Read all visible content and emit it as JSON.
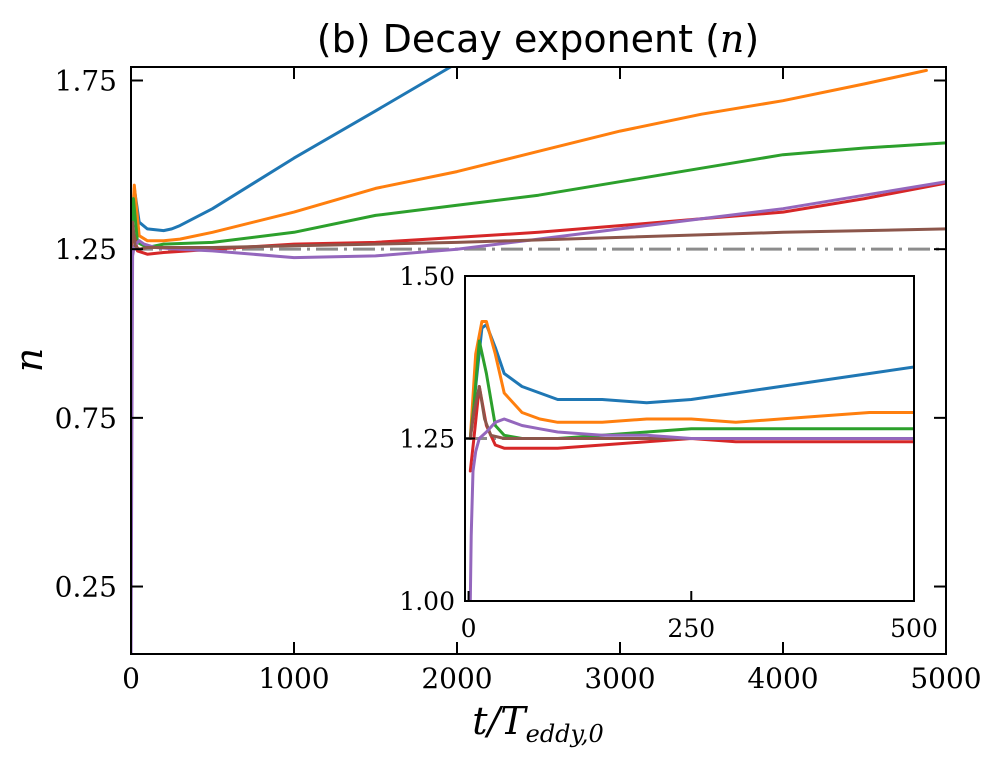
{
  "chart_data": {
    "type": "line",
    "title": "(b) Decay exponent (n)",
    "title_text": "(b) Decay exponent (",
    "title_symbol": "n",
    "title_close": ")",
    "xlabel": "t/T",
    "xlabel_sub": "eddy,0",
    "ylabel": "n",
    "xlim": [
      0,
      5000
    ],
    "ylim": [
      0.05,
      1.79
    ],
    "xticks": [
      0,
      1000,
      2000,
      3000,
      4000,
      5000
    ],
    "xtick_labels": [
      "0",
      "1000",
      "2000",
      "3000",
      "4000",
      "5000"
    ],
    "yticks": [
      0.25,
      0.75,
      1.25,
      1.75
    ],
    "ytick_labels": [
      "0.25",
      "0.75",
      "1.25",
      "1.75"
    ],
    "grid": false,
    "reference_line": {
      "y": 1.25,
      "style": "dash-dot",
      "color": "#8c8c8c"
    },
    "series": [
      {
        "name": "blue",
        "color": "#1f77b4",
        "x": [
          0,
          20,
          50,
          100,
          200,
          250,
          300,
          500,
          1000,
          1500,
          1960
        ],
        "y": [
          1.25,
          1.43,
          1.33,
          1.31,
          1.305,
          1.31,
          1.32,
          1.37,
          1.52,
          1.66,
          1.79
        ]
      },
      {
        "name": "orange",
        "color": "#ff7f0e",
        "x": [
          0,
          20,
          50,
          100,
          200,
          300,
          500,
          1000,
          1500,
          2000,
          2500,
          3000,
          3500,
          4000,
          4500,
          4880
        ],
        "y": [
          1.25,
          1.44,
          1.29,
          1.275,
          1.275,
          1.28,
          1.3,
          1.36,
          1.43,
          1.48,
          1.54,
          1.6,
          1.65,
          1.69,
          1.74,
          1.78
        ]
      },
      {
        "name": "green",
        "color": "#2ca02c",
        "x": [
          0,
          15,
          40,
          100,
          200,
          500,
          1000,
          1500,
          2000,
          2500,
          3000,
          3500,
          4000,
          4500,
          5000
        ],
        "y": [
          1.25,
          1.4,
          1.27,
          1.255,
          1.265,
          1.27,
          1.3,
          1.35,
          1.38,
          1.41,
          1.45,
          1.49,
          1.53,
          1.55,
          1.565
        ]
      },
      {
        "name": "red",
        "color": "#d62728",
        "x": [
          0,
          15,
          40,
          100,
          200,
          500,
          1000,
          1500,
          2000,
          2500,
          3000,
          3500,
          4000,
          4500,
          5000
        ],
        "y": [
          1.25,
          1.3,
          1.245,
          1.235,
          1.24,
          1.25,
          1.265,
          1.27,
          1.285,
          1.3,
          1.32,
          1.34,
          1.36,
          1.4,
          1.446
        ]
      },
      {
        "name": "purple",
        "color": "#9467bd",
        "x": [
          0,
          10,
          20,
          50,
          80,
          150,
          300,
          500,
          1000,
          1500,
          2000,
          2500,
          3000,
          3500,
          4000,
          4500,
          5000
        ],
        "y": [
          0.05,
          1.23,
          1.26,
          1.275,
          1.265,
          1.255,
          1.25,
          1.245,
          1.225,
          1.23,
          1.25,
          1.28,
          1.31,
          1.34,
          1.37,
          1.41,
          1.45
        ]
      },
      {
        "name": "brown",
        "color": "#8c564b",
        "x": [
          0,
          10,
          25,
          50,
          100,
          500,
          1000,
          2000,
          3000,
          4000,
          5000
        ],
        "y": [
          1.25,
          1.33,
          1.26,
          1.25,
          1.255,
          1.255,
          1.26,
          1.27,
          1.285,
          1.3,
          1.31
        ]
      }
    ],
    "inset": {
      "type": "line",
      "xlim": [
        -4,
        500
      ],
      "ylim": [
        1.0,
        1.5
      ],
      "xticks": [
        0,
        250,
        500
      ],
      "xtick_labels": [
        "0",
        "250",
        "500"
      ],
      "yticks": [
        1.0,
        1.25,
        1.5
      ],
      "ytick_labels": [
        "1.00",
        "1.25",
        "1.50"
      ],
      "reference_line": {
        "y": 1.25,
        "style": "dash-dot",
        "color": "#8c8c8c"
      },
      "series": [
        {
          "name": "blue",
          "color": "#1f77b4",
          "x": [
            2,
            8,
            15,
            20,
            30,
            40,
            60,
            80,
            100,
            150,
            200,
            250,
            300,
            350,
            400,
            450,
            500
          ],
          "y": [
            1.25,
            1.33,
            1.42,
            1.425,
            1.39,
            1.35,
            1.33,
            1.32,
            1.31,
            1.31,
            1.305,
            1.31,
            1.32,
            1.33,
            1.34,
            1.35,
            1.36
          ]
        },
        {
          "name": "orange",
          "color": "#ff7f0e",
          "x": [
            2,
            8,
            15,
            20,
            30,
            40,
            60,
            80,
            100,
            150,
            200,
            250,
            300,
            350,
            400,
            450,
            500
          ],
          "y": [
            1.25,
            1.38,
            1.43,
            1.43,
            1.38,
            1.32,
            1.29,
            1.28,
            1.275,
            1.275,
            1.28,
            1.28,
            1.275,
            1.28,
            1.285,
            1.29,
            1.29
          ]
        },
        {
          "name": "green",
          "color": "#2ca02c",
          "x": [
            2,
            6,
            12,
            20,
            30,
            40,
            60,
            80,
            100,
            150,
            200,
            250,
            300,
            400,
            500
          ],
          "y": [
            1.25,
            1.3,
            1.4,
            1.35,
            1.27,
            1.255,
            1.25,
            1.25,
            1.25,
            1.255,
            1.26,
            1.265,
            1.265,
            1.265,
            1.265
          ]
        },
        {
          "name": "red",
          "color": "#d62728",
          "x": [
            2,
            6,
            12,
            20,
            30,
            40,
            60,
            80,
            100,
            150,
            200,
            250,
            300,
            400,
            500
          ],
          "y": [
            1.2,
            1.25,
            1.33,
            1.27,
            1.24,
            1.235,
            1.235,
            1.235,
            1.235,
            1.24,
            1.245,
            1.25,
            1.245,
            1.245,
            1.245
          ]
        },
        {
          "name": "brown",
          "color": "#8c564b",
          "x": [
            2,
            6,
            12,
            18,
            25,
            40,
            60,
            100,
            200,
            300,
            400,
            500
          ],
          "y": [
            1.25,
            1.29,
            1.33,
            1.28,
            1.255,
            1.25,
            1.25,
            1.25,
            1.25,
            1.25,
            1.25,
            1.25
          ]
        },
        {
          "name": "purple",
          "color": "#9467bd",
          "x": [
            2,
            3,
            5,
            8,
            12,
            20,
            30,
            40,
            60,
            80,
            100,
            150,
            200,
            250,
            300,
            350,
            400,
            450,
            500
          ],
          "y": [
            1.0,
            1.1,
            1.2,
            1.23,
            1.25,
            1.26,
            1.275,
            1.28,
            1.27,
            1.265,
            1.26,
            1.255,
            1.255,
            1.25,
            1.25,
            1.25,
            1.25,
            1.25,
            1.25
          ]
        }
      ]
    }
  }
}
